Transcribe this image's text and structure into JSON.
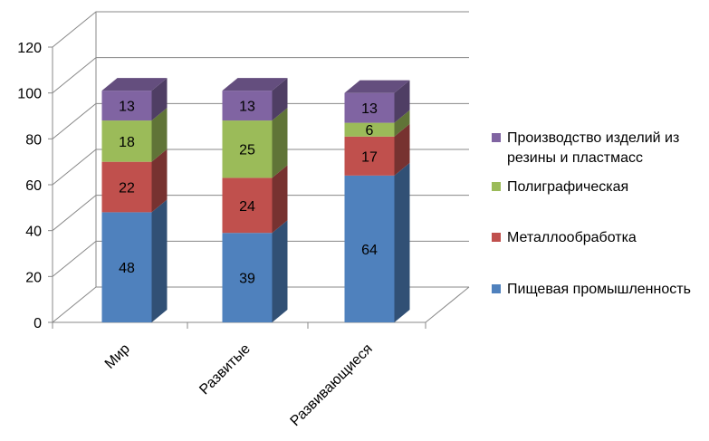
{
  "chart_data": {
    "type": "bar",
    "stacked": true,
    "three_d": true,
    "categories": [
      "Мир",
      "Развитые",
      "Развивающиеся"
    ],
    "series": [
      {
        "name": "Пищевая промышленность",
        "values": [
          48,
          39,
          64
        ],
        "color": "#4F81BD"
      },
      {
        "name": "Металлообработка",
        "values": [
          22,
          24,
          17
        ],
        "color": "#C0504D"
      },
      {
        "name": "Полиграфическая",
        "values": [
          18,
          25,
          6
        ],
        "color": "#9BBB59"
      },
      {
        "name": "Производство изделий из резины и пластмасс",
        "values": [
          13,
          13,
          13
        ],
        "color": "#8064A2"
      }
    ],
    "legend_lines": [
      [
        "Пищевая промышленность"
      ],
      [
        "Металлообработка"
      ],
      [
        "Полиграфическая"
      ],
      [
        "Производство изделий из",
        "резины и пластмасс"
      ]
    ],
    "y_ticks": [
      "0",
      "20",
      "40",
      "60",
      "80",
      "100",
      "120"
    ],
    "ylim": [
      0,
      120
    ],
    "grid": true,
    "legend_position": "right",
    "title": "",
    "xlabel": "",
    "ylabel": ""
  }
}
